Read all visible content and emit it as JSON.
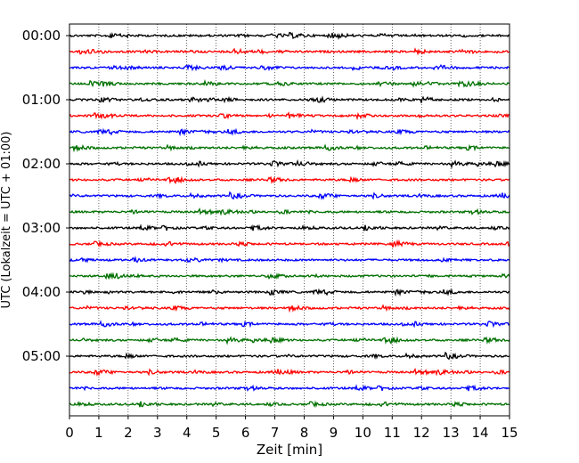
{
  "chart_data": {
    "type": "line",
    "title": "",
    "xlabel": "Zeit  [min]",
    "ylabel": "UTC (Lokalzeit = UTC + 01:00)",
    "xlim": [
      0,
      15
    ],
    "xticks": [
      0,
      1,
      2,
      3,
      4,
      5,
      6,
      7,
      8,
      9,
      10,
      11,
      12,
      13,
      14,
      15
    ],
    "xtick_labels": [
      "0",
      "1",
      "2",
      "3",
      "4",
      "5",
      "6",
      "7",
      "8",
      "9",
      "10",
      "11",
      "12",
      "13",
      "14",
      "15"
    ],
    "yticks": [
      {
        "label": "00:00",
        "row": 0
      },
      {
        "label": "01:00",
        "row": 4
      },
      {
        "label": "02:00",
        "row": 8
      },
      {
        "label": "03:00",
        "row": 12
      },
      {
        "label": "04:00",
        "row": 16
      },
      {
        "label": "05:00",
        "row": 20
      }
    ],
    "grid": {
      "x": true,
      "y": false,
      "style": "dotted"
    },
    "trace_count": 24,
    "trace_interval_min": 15,
    "trace_colors": [
      "#000000",
      "#ff0000",
      "#0000ff",
      "#007000"
    ]
  }
}
